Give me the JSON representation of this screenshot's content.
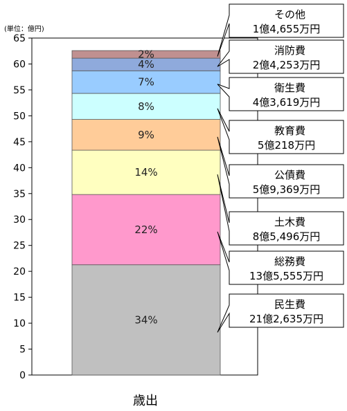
{
  "chart_data": {
    "type": "bar",
    "stacked": true,
    "unit_label": "(単位：億円)",
    "categories": [
      "歳出"
    ],
    "ylim": [
      0,
      65
    ],
    "yticks": [
      0,
      5,
      10,
      15,
      20,
      25,
      30,
      35,
      40,
      45,
      50,
      55,
      60,
      65
    ],
    "grid": false,
    "series": [
      {
        "name": "民生費",
        "value": 21.2635,
        "pct": "34%",
        "amount": "21億2,635万円",
        "color": "#c0c0c0"
      },
      {
        "name": "総務費",
        "value": 13.5555,
        "pct": "22%",
        "amount": "13億5,555万円",
        "color": "#ff99cc"
      },
      {
        "name": "土木費",
        "value": 8.5496,
        "pct": "14%",
        "amount": "8億5,496万円",
        "color": "#ffffc0"
      },
      {
        "name": "公債費",
        "value": 5.9369,
        "pct": "9%",
        "amount": "5億9,369万円",
        "color": "#ffcc99"
      },
      {
        "name": "教育費",
        "value": 5.0218,
        "pct": "8%",
        "amount": "5億218万円",
        "color": "#ccffff"
      },
      {
        "name": "衛生費",
        "value": 4.3619,
        "pct": "7%",
        "amount": "4億3,619万円",
        "color": "#99ccff"
      },
      {
        "name": "消防費",
        "value": 2.4253,
        "pct": "4%",
        "amount": "2億4,253万円",
        "color": "#8faadc"
      },
      {
        "name": "その他",
        "value": 1.4655,
        "pct": "2%",
        "amount": "1億4,655万円",
        "color": "#c09090"
      }
    ]
  }
}
